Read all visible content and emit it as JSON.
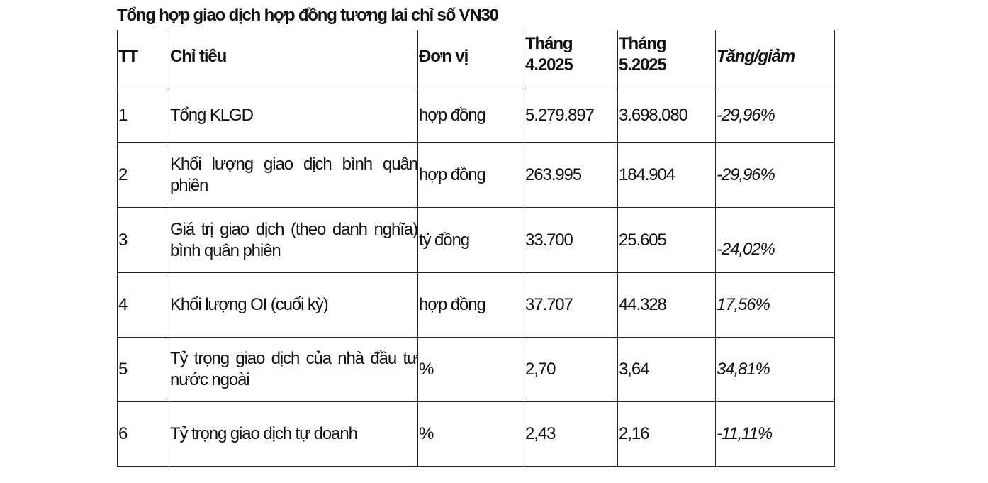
{
  "title": "Tổng hợp giao dịch hợp đồng tương lai chỉ số VN30",
  "columns": [
    "TT",
    "Chỉ tiêu",
    "Đơn vị",
    "Tháng 4.2025",
    "Tháng 5.2025",
    "Tăng/giảm"
  ],
  "rows": [
    {
      "tt": "1",
      "indicator": "Tổng KLGD",
      "unit": "hợp đồng",
      "apr": "5.279.897",
      "may": "3.698.080",
      "change": "-29,96%"
    },
    {
      "tt": "2",
      "indicator": "Khối lượng giao dịch bình quân phiên",
      "unit": "hợp đồng",
      "apr": "263.995",
      "may": "184.904",
      "change": "-29,96%"
    },
    {
      "tt": "3",
      "indicator": "Giá trị giao dịch (theo danh nghĩa) bình quân phiên",
      "unit": "tỷ đồng",
      "apr": "33.700",
      "may": "25.605",
      "change": "-24,02%"
    },
    {
      "tt": "4",
      "indicator": "Khối lượng OI (cuối kỳ)",
      "unit": "hợp đồng",
      "apr": "37.707",
      "may": "44.328",
      "change": "17,56%"
    },
    {
      "tt": "5",
      "indicator": "Tỷ trọng giao dịch của nhà đầu tư nước ngoài",
      "unit": "%",
      "apr": "2,70",
      "may": "3,64",
      "change": "34,81%"
    },
    {
      "tt": "6",
      "indicator": "Tỷ trọng giao dịch tự doanh",
      "unit": "%",
      "apr": "2,43",
      "may": "2,16",
      "change": "-11,11%"
    }
  ]
}
